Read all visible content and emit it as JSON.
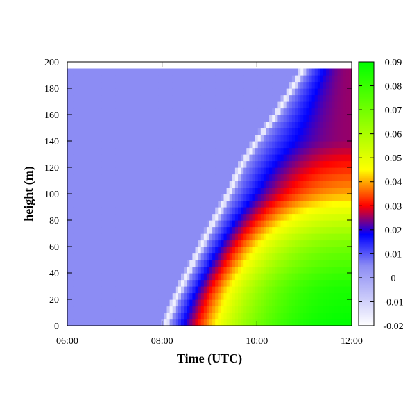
{
  "chart_data": {
    "type": "heatmap",
    "title": "",
    "xlabel": "Time (UTC)",
    "ylabel": "height (m)",
    "x_ticks": [
      "06:00",
      "08:00",
      "10:00",
      "12:00"
    ],
    "x_range": [
      "06:00",
      "12:00"
    ],
    "y_ticks": [
      0,
      20,
      40,
      60,
      80,
      100,
      120,
      140,
      160,
      180,
      200
    ],
    "y_range": [
      0,
      200
    ],
    "data_y_max": 195,
    "colorbar": {
      "range": [
        -0.02,
        0.09
      ],
      "ticks": [
        "-0.02",
        "-0.01",
        "0",
        "0.01",
        "0.02",
        "0.03",
        "0.04",
        "0.05",
        "0.06",
        "0.07",
        "0.08",
        "0.09"
      ],
      "stops": [
        {
          "value": -0.02,
          "color": "#ffffff"
        },
        {
          "value": 0.005,
          "color": "#8c8cf4"
        },
        {
          "value": 0.018,
          "color": "#0000ff"
        },
        {
          "value": 0.03,
          "color": "#ff0000"
        },
        {
          "value": 0.045,
          "color": "#ffff00"
        },
        {
          "value": 0.09,
          "color": "#00ff00"
        }
      ]
    },
    "background_value": 0.005,
    "front_profile": {
      "description_units": "time when the signal front reaches each height",
      "heights": [
        0,
        20,
        40,
        60,
        80,
        100,
        120,
        140,
        160,
        180,
        195
      ],
      "times": [
        "08:10",
        "08:22",
        "08:38",
        "08:55",
        "09:12",
        "09:30",
        "09:45",
        "10:05",
        "10:30",
        "10:50",
        "11:05"
      ]
    },
    "surface_max_profile": {
      "heights": [
        0,
        30,
        60,
        80,
        100,
        120,
        140
      ],
      "max_values": [
        0.09,
        0.085,
        0.07,
        0.055,
        0.04,
        0.032,
        0.025
      ]
    },
    "grid": false
  }
}
